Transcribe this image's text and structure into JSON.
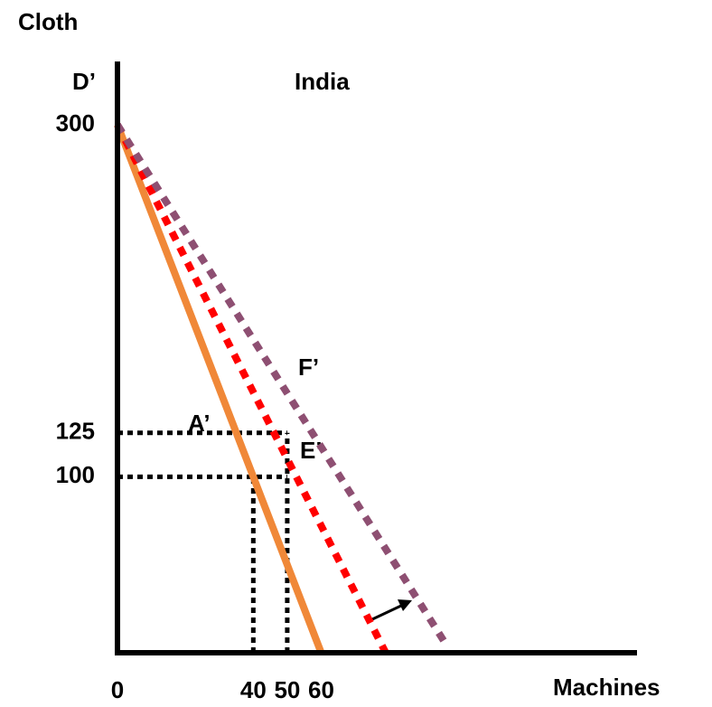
{
  "chart_data": {
    "type": "line",
    "title": "India",
    "y_label": "Cloth",
    "x_label": "Machines",
    "xlim": [
      0,
      153
    ],
    "ylim": [
      0,
      336
    ],
    "xticks": [
      0,
      40,
      50,
      60
    ],
    "yticks": [
      100,
      125,
      300
    ],
    "series": [
      {
        "color": "#f08838",
        "style": "solid",
        "x": [
          0,
          60
        ],
        "values": [
          300,
          0
        ]
      },
      {
        "color": "#ff0000",
        "style": "dotted",
        "x": [
          0,
          79
        ],
        "values": [
          300,
          0
        ]
      },
      {
        "color": "#8e4f72",
        "style": "dotted",
        "x": [
          0,
          97
        ],
        "values": [
          300,
          4
        ]
      }
    ],
    "annotations": [
      "D’",
      "F’",
      "E’",
      "A’"
    ]
  }
}
